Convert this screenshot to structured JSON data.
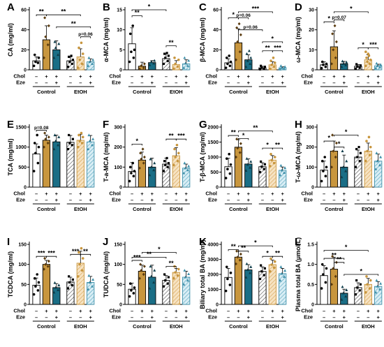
{
  "colors": {
    "control_chol": "#c8963e",
    "control_chol_eze": "#1a6e86",
    "etoh_chol": "#e8c58a",
    "etoh_chol_eze": "#6fb3c9",
    "axis": "#000000"
  },
  "row_labels": {
    "chol": "Chol",
    "eze": "Eze"
  },
  "group_labels": [
    "Control",
    "EtOH"
  ],
  "row_signs": {
    "chol": [
      "–",
      "+",
      "+",
      "–",
      "+",
      "+"
    ],
    "eze": [
      "–",
      "–",
      "+",
      "–",
      "–",
      "+"
    ]
  },
  "chart_data": [
    {
      "type": "bar",
      "letter": "A",
      "ylabel": "CA (mg/ml)",
      "ylim": [
        0,
        60
      ],
      "yticks": [
        0,
        20,
        40,
        60
      ],
      "values": [
        9,
        30,
        20,
        9,
        13,
        8
      ],
      "errors": [
        4,
        14,
        9,
        4,
        8,
        3
      ],
      "points": [
        [
          4,
          7,
          8,
          12,
          15
        ],
        [
          12,
          25,
          33,
          44,
          52
        ],
        [
          12,
          15,
          22,
          26,
          28
        ],
        [
          3,
          6,
          8,
          10,
          13,
          14
        ],
        [
          2,
          6,
          10,
          16,
          22,
          27
        ],
        [
          4,
          6,
          8,
          10,
          12
        ]
      ],
      "sig": [
        {
          "from": 0,
          "to": 1,
          "label": "**",
          "y": 55
        },
        {
          "from": 1,
          "to": 4,
          "label": "**",
          "y": 55
        },
        {
          "from": 2,
          "to": 5,
          "label": "**",
          "y": 43
        },
        {
          "from": 4,
          "to": 5,
          "label": "p=0.06",
          "y": 33
        }
      ]
    },
    {
      "type": "bar",
      "letter": "B",
      "ylabel": "α-MCA (mg/ml)",
      "ylim": [
        0,
        15
      ],
      "yticks": [
        0,
        5,
        10,
        15
      ],
      "values": [
        6.5,
        0.9,
        1.8,
        2.8,
        1.3,
        1.5
      ],
      "errors": [
        4,
        1,
        0.5,
        1.2,
        1,
        1
      ],
      "points": [
        [
          2,
          3,
          4.5,
          5,
          9,
          11
        ],
        [
          0.2,
          0.5,
          1,
          1.5
        ],
        [
          1.2,
          1.6,
          2,
          2.3
        ],
        [
          1.5,
          2.2,
          3,
          3.5,
          4,
          4.2
        ],
        [
          0.3,
          0.8,
          1.5,
          2.5,
          3
        ],
        [
          0.5,
          1,
          1.6,
          2.3,
          3
        ]
      ],
      "sig": [
        {
          "from": 0,
          "to": 1,
          "label": "**",
          "y": 13.5
        },
        {
          "from": 0,
          "to": 3,
          "label": "*",
          "y": 15
        },
        {
          "from": 3,
          "to": 4,
          "label": "**",
          "y": 6
        }
      ]
    },
    {
      "type": "bar",
      "letter": "C",
      "ylabel": "β-MCA (mg/ml)",
      "ylim": [
        0,
        60
      ],
      "yticks": [
        0,
        20,
        40,
        60
      ],
      "values": [
        7,
        27,
        10,
        2,
        5,
        2
      ],
      "errors": [
        4,
        14,
        5,
        1.5,
        3,
        1
      ],
      "points": [
        [
          2,
          4,
          6,
          8,
          12,
          14
        ],
        [
          10,
          18,
          28,
          35,
          42,
          46
        ],
        [
          3,
          6,
          9,
          12,
          16,
          19
        ],
        [
          0.5,
          1,
          2,
          3,
          4
        ],
        [
          1,
          3,
          5,
          7,
          9,
          12
        ],
        [
          0.5,
          1,
          2,
          3,
          4
        ]
      ],
      "sig": [
        {
          "from": 0,
          "to": 1,
          "label": "*",
          "y": 52
        },
        {
          "from": 1,
          "to": 4,
          "label": "***",
          "y": 58
        },
        {
          "from": 1,
          "to": 2,
          "label": "p=0.06",
          "y": 52
        },
        {
          "from": 1,
          "to": 3,
          "label": "p=0.06",
          "y": 40
        },
        {
          "from": 3,
          "to": 5,
          "label": "*",
          "y": 28
        },
        {
          "from": 3,
          "to": 4,
          "label": "**",
          "y": 19
        },
        {
          "from": 4,
          "to": 5,
          "label": "***",
          "y": 19
        }
      ]
    },
    {
      "type": "bar",
      "letter": "D",
      "ylabel": "ω-MCA (mg/ml)",
      "ylim": [
        0,
        30
      ],
      "yticks": [
        0,
        10,
        20,
        30
      ],
      "values": [
        2.5,
        11.5,
        3,
        1.8,
        5,
        2
      ],
      "errors": [
        1.5,
        8,
        1.2,
        0.8,
        2.5,
        0.8
      ],
      "points": [
        [
          0.8,
          1.5,
          2.5,
          3,
          4
        ],
        [
          3,
          6,
          10,
          14,
          18,
          22
        ],
        [
          1.5,
          2.3,
          3,
          3.8,
          4.3
        ],
        [
          0.6,
          1,
          1.6,
          2.2,
          2.8
        ],
        [
          2,
          3,
          4,
          5,
          6,
          7,
          8,
          9
        ],
        [
          0.8,
          1.3,
          2,
          2.6,
          3.2
        ]
      ],
      "sig": [
        {
          "from": 0,
          "to": 1,
          "label": "*",
          "y": 24
        },
        {
          "from": 1,
          "to": 4,
          "label": "*",
          "y": 29
        },
        {
          "from": 1,
          "to": 2,
          "label": "p=0.07",
          "y": 25
        },
        {
          "from": 3,
          "to": 4,
          "label": "*",
          "y": 11
        },
        {
          "from": 4,
          "to": 5,
          "label": "***",
          "y": 11
        }
      ]
    },
    {
      "type": "bar",
      "letter": "E",
      "ylabel": "TCA (mg/ml)",
      "ylim": [
        0,
        1500
      ],
      "yticks": [
        0,
        500,
        1000,
        1500
      ],
      "values": [
        830,
        1170,
        1130,
        1120,
        1170,
        1130
      ],
      "errors": [
        250,
        130,
        170,
        170,
        150,
        160
      ],
      "points": [
        [
          400,
          600,
          850,
          1000,
          1100,
          1300
        ],
        [
          1000,
          1100,
          1200,
          1250,
          1350
        ],
        [
          950,
          1050,
          1150,
          1250,
          1300
        ],
        [
          950,
          1050,
          1100,
          1200,
          1300
        ],
        [
          1000,
          1100,
          1150,
          1250,
          1300,
          1350
        ],
        [
          950,
          1050,
          1150,
          1200,
          1300
        ]
      ],
      "sig": [
        {
          "from": 0,
          "to": 1,
          "label": "p=0.08",
          "y": 1420
        }
      ]
    },
    {
      "type": "bar",
      "letter": "F",
      "ylabel": "T-a-MCA (mg/ml)",
      "ylim": [
        0,
        300
      ],
      "yticks": [
        0,
        100,
        200,
        300
      ],
      "values": [
        78,
        135,
        100,
        115,
        157,
        95
      ],
      "errors": [
        45,
        40,
        45,
        30,
        40,
        20
      ],
      "points": [
        [
          30,
          55,
          70,
          80,
          100,
          120
        ],
        [
          95,
          120,
          140,
          150,
          170,
          190
        ],
        [
          60,
          85,
          100,
          120,
          140
        ],
        [
          80,
          100,
          110,
          120,
          130,
          145
        ],
        [
          110,
          130,
          150,
          170,
          190,
          210
        ],
        [
          70,
          85,
          95,
          105,
          120
        ]
      ],
      "sig": [
        {
          "from": 0,
          "to": 1,
          "label": "*",
          "y": 215
        },
        {
          "from": 3,
          "to": 4,
          "label": "**",
          "y": 240
        },
        {
          "from": 4,
          "to": 5,
          "label": "***",
          "y": 240
        }
      ]
    },
    {
      "type": "bar",
      "letter": "G",
      "ylabel": "T-β-MCA (mg/ml)",
      "ylim": [
        0,
        2000
      ],
      "yticks": [
        0,
        500,
        1000,
        1500,
        2000
      ],
      "values": [
        680,
        1330,
        770,
        680,
        900,
        560
      ],
      "errors": [
        280,
        250,
        170,
        130,
        150,
        110
      ],
      "points": [
        [
          300,
          450,
          600,
          750,
          950,
          1100
        ],
        [
          1000,
          1150,
          1300,
          1450,
          1600
        ],
        [
          550,
          650,
          750,
          850,
          950
        ],
        [
          500,
          600,
          680,
          760,
          850
        ],
        [
          700,
          800,
          900,
          1000,
          1100
        ],
        [
          400,
          480,
          560,
          640,
          720
        ]
      ],
      "sig": [
        {
          "from": 0,
          "to": 1,
          "label": "**",
          "y": 1720
        },
        {
          "from": 1,
          "to": 2,
          "label": "*",
          "y": 1620
        },
        {
          "from": 1,
          "to": 4,
          "label": "**",
          "y": 1870
        },
        {
          "from": 3,
          "to": 4,
          "label": "*",
          "y": 1300
        },
        {
          "from": 4,
          "to": 5,
          "label": "**",
          "y": 1300
        }
      ]
    },
    {
      "type": "bar",
      "letter": "H",
      "ylabel": "T-ω-MCA (mg/ml)",
      "ylim": [
        0,
        300
      ],
      "yticks": [
        0,
        100,
        200,
        300
      ],
      "values": [
        85,
        180,
        100,
        150,
        180,
        130
      ],
      "errors": [
        45,
        50,
        60,
        35,
        40,
        35
      ],
      "points": [
        [
          30,
          55,
          80,
          100,
          130,
          150
        ],
        [
          100,
          150,
          180,
          220,
          260
        ],
        [
          50,
          80,
          100,
          130,
          180
        ],
        [
          100,
          130,
          150,
          170,
          190,
          200
        ],
        [
          130,
          160,
          180,
          200,
          230,
          250
        ],
        [
          90,
          110,
          130,
          150,
          170
        ]
      ],
      "sig": [
        {
          "from": 0,
          "to": 1,
          "label": "*",
          "y": 230
        },
        {
          "from": 1,
          "to": 2,
          "label": "*",
          "y": 200
        },
        {
          "from": 1,
          "to": 3,
          "label": "*",
          "y": 260
        }
      ]
    },
    {
      "type": "bar",
      "letter": "I",
      "ylabel": "TCDCA (mg/ml)",
      "ylim": [
        0,
        150
      ],
      "yticks": [
        0,
        50,
        100,
        150
      ],
      "values": [
        48,
        100,
        42,
        56,
        103,
        55
      ],
      "errors": [
        18,
        10,
        10,
        12,
        30,
        15
      ],
      "points": [
        [
          25,
          35,
          45,
          55,
          65,
          75
        ],
        [
          88,
          95,
          100,
          108,
          115
        ],
        [
          30,
          36,
          42,
          48,
          54
        ],
        [
          40,
          48,
          55,
          62,
          70
        ],
        [
          70,
          85,
          100,
          115,
          130,
          140
        ],
        [
          38,
          45,
          55,
          62,
          72
        ]
      ],
      "sig": [
        {
          "from": 0,
          "to": 1,
          "label": "***",
          "y": 120
        },
        {
          "from": 1,
          "to": 2,
          "label": "***",
          "y": 120
        },
        {
          "from": 3,
          "to": 4,
          "label": "***",
          "y": 125
        },
        {
          "from": 4,
          "to": 5,
          "label": "**",
          "y": 125
        }
      ]
    },
    {
      "type": "bar",
      "letter": "J",
      "ylabel": "TUDCA (mg/ml)",
      "ylim": [
        0,
        150
      ],
      "yticks": [
        0,
        50,
        100,
        150
      ],
      "values": [
        38,
        83,
        68,
        60,
        80,
        68
      ],
      "errors": [
        15,
        15,
        30,
        12,
        10,
        15
      ],
      "points": [
        [
          20,
          28,
          35,
          42,
          52
        ],
        [
          65,
          75,
          85,
          95,
          100
        ],
        [
          40,
          55,
          70,
          85,
          95
        ],
        [
          45,
          52,
          60,
          68,
          75
        ],
        [
          65,
          72,
          80,
          88,
          95
        ],
        [
          50,
          60,
          68,
          76,
          85
        ]
      ],
      "sig": [
        {
          "from": 0,
          "to": 1,
          "label": "***",
          "y": 110
        },
        {
          "from": 0,
          "to": 3,
          "label": "**",
          "y": 118
        },
        {
          "from": 1,
          "to": 4,
          "label": "*",
          "y": 130
        },
        {
          "from": 3,
          "to": 4,
          "label": "**",
          "y": 95
        }
      ]
    },
    {
      "type": "bar",
      "letter": "K",
      "ylabel": "Biliary total BA (mg/ml)",
      "ylim": [
        0,
        4000
      ],
      "yticks": [
        0,
        1000,
        2000,
        3000,
        4000
      ],
      "values": [
        1800,
        3150,
        2300,
        2200,
        2650,
        2050
      ],
      "errors": [
        600,
        400,
        350,
        300,
        300,
        350
      ],
      "points": [
        [
          900,
          1300,
          1700,
          2100,
          2500
        ],
        [
          2700,
          2950,
          3150,
          3350,
          3550
        ],
        [
          1800,
          2100,
          2300,
          2500,
          2700
        ],
        [
          1700,
          1950,
          2200,
          2400,
          2600
        ],
        [
          2200,
          2450,
          2650,
          2850,
          3050
        ],
        [
          1600,
          1850,
          2050,
          2250,
          2500
        ]
      ],
      "sig": [
        {
          "from": 0,
          "to": 1,
          "label": "**",
          "y": 3650
        },
        {
          "from": 1,
          "to": 2,
          "label": "**",
          "y": 3550
        },
        {
          "from": 1,
          "to": 4,
          "label": "*",
          "y": 3900
        },
        {
          "from": 3,
          "to": 4,
          "label": "*",
          "y": 3200
        },
        {
          "from": 4,
          "to": 5,
          "label": "**",
          "y": 3200
        }
      ]
    },
    {
      "type": "bar",
      "letter": "L",
      "ylabel": "Plasma total BA (μmol/L)",
      "ylim": [
        0,
        1.5
      ],
      "yticks": [
        0,
        0.5,
        1.0,
        1.5
      ],
      "values": [
        0.72,
        0.88,
        0.28,
        0.42,
        0.5,
        0.45
      ],
      "errors": [
        0.25,
        0.3,
        0.1,
        0.12,
        0.15,
        0.12
      ],
      "points": [
        [
          0.4,
          0.55,
          0.75,
          0.9,
          1.0
        ],
        [
          0.5,
          0.7,
          0.9,
          1.05,
          1.2
        ],
        [
          0.12,
          0.2,
          0.28,
          0.36,
          0.44
        ],
        [
          0.25,
          0.35,
          0.42,
          0.5,
          0.6
        ],
        [
          0.3,
          0.4,
          0.5,
          0.6,
          0.7
        ],
        [
          0.3,
          0.38,
          0.45,
          0.52,
          0.6
        ]
      ],
      "sig": [
        {
          "from": 0,
          "to": 2,
          "label": "**",
          "y": 1.15
        },
        {
          "from": 1,
          "to": 2,
          "label": "**",
          "y": 1.05
        },
        {
          "from": 0,
          "to": 4,
          "label": "*",
          "y": 1.35
        },
        {
          "from": 2,
          "to": 5,
          "label": "*",
          "y": 0.75
        }
      ]
    }
  ]
}
